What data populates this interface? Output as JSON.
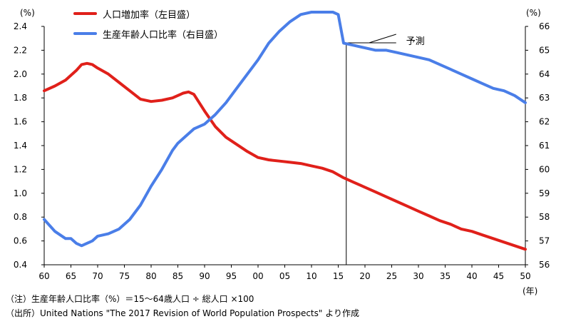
{
  "chart_data": {
    "type": "line",
    "left_axis_unit": "(%)",
    "right_axis_unit": "(%)",
    "x_unit": "(年)",
    "x_tick_labels": [
      "60",
      "65",
      "70",
      "75",
      "80",
      "85",
      "90",
      "95",
      "00",
      "05",
      "10",
      "15",
      "20",
      "25",
      "30",
      "35",
      "40",
      "45",
      "50"
    ],
    "x_tick_values": [
      1960,
      1965,
      1970,
      1975,
      1980,
      1985,
      1990,
      1995,
      2000,
      2005,
      2010,
      2015,
      2020,
      2025,
      2030,
      2035,
      2040,
      2045,
      2050
    ],
    "xlim": [
      1960,
      2050
    ],
    "left_ylim": [
      0.4,
      2.4
    ],
    "left_y_ticks": [
      "0.4",
      "0.6",
      "0.8",
      "1.0",
      "1.2",
      "1.4",
      "1.6",
      "1.8",
      "2.0",
      "2.2",
      "2.4"
    ],
    "right_ylim": [
      56,
      66
    ],
    "right_y_ticks": [
      "56",
      "57",
      "58",
      "59",
      "60",
      "61",
      "62",
      "63",
      "64",
      "65",
      "66"
    ],
    "forecast_start": 2016.5,
    "forecast_label": "予測",
    "grid": false,
    "legend_position": "top-left",
    "series": [
      {
        "name": "人口増加率（左目盛）",
        "axis": "left",
        "color": "#e0201a",
        "x": [
          1960,
          1962,
          1964,
          1966,
          1967,
          1968,
          1969,
          1970,
          1972,
          1974,
          1976,
          1978,
          1980,
          1982,
          1984,
          1986,
          1987,
          1988,
          1990,
          1992,
          1994,
          1996,
          1998,
          2000,
          2002,
          2004,
          2006,
          2008,
          2010,
          2012,
          2014,
          2016,
          2018,
          2020,
          2022,
          2024,
          2026,
          2028,
          2030,
          2032,
          2034,
          2036,
          2038,
          2040,
          2042,
          2044,
          2046,
          2048,
          2050
        ],
        "values": [
          1.86,
          1.9,
          1.95,
          2.03,
          2.08,
          2.09,
          2.08,
          2.05,
          2.0,
          1.93,
          1.86,
          1.79,
          1.77,
          1.78,
          1.8,
          1.84,
          1.85,
          1.83,
          1.69,
          1.56,
          1.47,
          1.41,
          1.35,
          1.3,
          1.28,
          1.27,
          1.26,
          1.25,
          1.23,
          1.21,
          1.18,
          1.13,
          1.09,
          1.05,
          1.01,
          0.97,
          0.93,
          0.89,
          0.85,
          0.81,
          0.77,
          0.74,
          0.7,
          0.68,
          0.65,
          0.62,
          0.59,
          0.56,
          0.53
        ]
      },
      {
        "name": "生産年齢人口比率（右目盛）",
        "axis": "right",
        "color": "#4a7ee8",
        "x": [
          1960,
          1962,
          1964,
          1965,
          1966,
          1967,
          1968,
          1969,
          1970,
          1972,
          1974,
          1976,
          1978,
          1980,
          1982,
          1984,
          1985,
          1986,
          1988,
          1990,
          1992,
          1994,
          1996,
          1998,
          2000,
          2002,
          2004,
          2006,
          2008,
          2010,
          2011,
          2012,
          2014,
          2015,
          2016,
          2018,
          2020,
          2022,
          2024,
          2026,
          2028,
          2030,
          2032,
          2034,
          2036,
          2038,
          2040,
          2042,
          2044,
          2046,
          2048,
          2050
        ],
        "values": [
          57.9,
          57.4,
          57.1,
          57.1,
          56.9,
          56.8,
          56.9,
          57.0,
          57.2,
          57.3,
          57.5,
          57.9,
          58.5,
          59.3,
          60.0,
          60.8,
          61.1,
          61.3,
          61.7,
          61.9,
          62.3,
          62.8,
          63.4,
          64.0,
          64.6,
          65.3,
          65.8,
          66.2,
          66.5,
          66.6,
          66.6,
          66.6,
          66.6,
          66.5,
          65.3,
          65.2,
          65.1,
          65.0,
          65.0,
          64.9,
          64.8,
          64.7,
          64.6,
          64.4,
          64.2,
          64.0,
          63.8,
          63.6,
          63.4,
          63.3,
          63.1,
          62.8
        ]
      }
    ]
  },
  "notes": {
    "note1": "（注）生産年齢人口比率（%）＝15～64歳人口 ÷ 総人口 ×100",
    "note2": "（出所）United Nations \"The 2017 Revision of World Population Prospects\" より作成"
  }
}
